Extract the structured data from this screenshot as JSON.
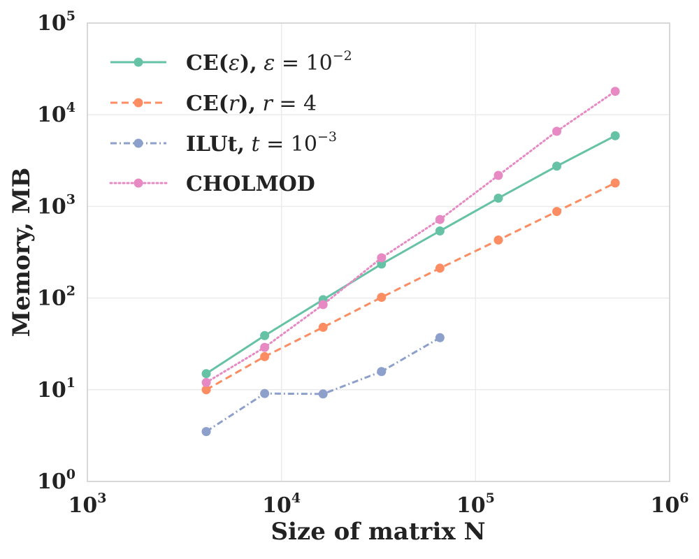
{
  "chart_data": {
    "type": "line",
    "xscale": "log",
    "yscale": "log",
    "xlim": [
      1000,
      1000000
    ],
    "ylim": [
      1,
      100000
    ],
    "xlabel": "Size of matrix N",
    "ylabel": "Memory, MB",
    "grid": true,
    "legend_position": "top-left",
    "x_ticks": [
      {
        "base": "10",
        "exp": "3",
        "value": 1000
      },
      {
        "base": "10",
        "exp": "4",
        "value": 10000
      },
      {
        "base": "10",
        "exp": "5",
        "value": 100000
      },
      {
        "base": "10",
        "exp": "6",
        "value": 1000000
      }
    ],
    "y_ticks": [
      {
        "base": "10",
        "exp": "0",
        "value": 1
      },
      {
        "base": "10",
        "exp": "1",
        "value": 10
      },
      {
        "base": "10",
        "exp": "2",
        "value": 100
      },
      {
        "base": "10",
        "exp": "3",
        "value": 1000
      },
      {
        "base": "10",
        "exp": "4",
        "value": 10000
      },
      {
        "base": "10",
        "exp": "5",
        "value": 100000
      }
    ],
    "series": [
      {
        "name": "CE(ε), ε = 10^-2",
        "legend": {
          "bold": "CE(",
          "italic1": "ε",
          "bold2": "),",
          "italic2": "ε",
          "eq": " = 10",
          "sup": "−2"
        },
        "color": "#66c2a5",
        "dash": "solid",
        "x": [
          4096,
          8192,
          16384,
          32768,
          65536,
          131072,
          262144,
          524288
        ],
        "y": [
          15,
          39,
          96,
          235,
          540,
          1230,
          2750,
          5900
        ]
      },
      {
        "name": "CE(r), r = 4",
        "legend": {
          "bold": "CE(",
          "italic1": "r",
          "bold2": "),",
          "italic2": "r",
          "eq": " = 4",
          "sup": ""
        },
        "color": "#fc8d62",
        "dash": "dashed",
        "x": [
          4096,
          8192,
          16384,
          32768,
          65536,
          131072,
          262144,
          524288
        ],
        "y": [
          10,
          23,
          48,
          102,
          212,
          430,
          880,
          1800
        ]
      },
      {
        "name": "ILUt, t = 10^-3",
        "legend": {
          "bold": "ILUt,",
          "italic1": "",
          "bold2": "",
          "italic2": "t",
          "eq": " = 10",
          "sup": "−3"
        },
        "color": "#8da0cb",
        "dash": "dashdot",
        "x": [
          4096,
          8192,
          16384,
          32768,
          65536
        ],
        "y": [
          3.5,
          9.1,
          9.0,
          15.8,
          37
        ]
      },
      {
        "name": "CHOLMOD",
        "legend": {
          "bold": "CHOLMOD",
          "italic1": "",
          "bold2": "",
          "italic2": "",
          "eq": "",
          "sup": ""
        },
        "color": "#e78ac3",
        "dash": "dotted",
        "x": [
          4096,
          8192,
          16384,
          32768,
          65536,
          131072,
          262144,
          524288
        ],
        "y": [
          12,
          29,
          85,
          275,
          720,
          2180,
          6600,
          18000
        ]
      }
    ]
  }
}
